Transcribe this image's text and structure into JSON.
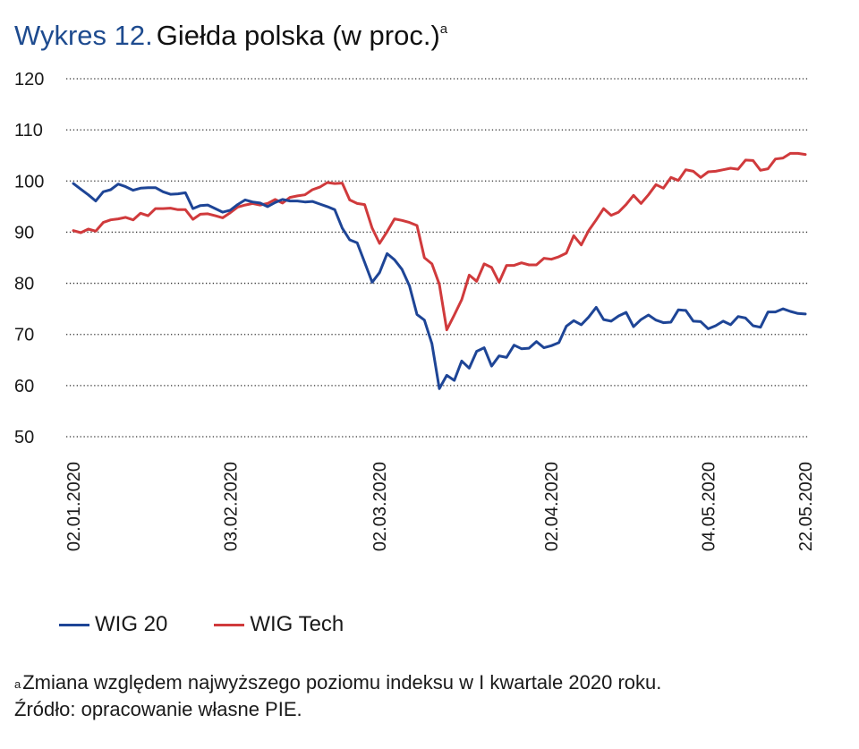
{
  "header": {
    "label": "Wykres 12.",
    "title": "Giełda polska (w proc.)",
    "title_sup": "a"
  },
  "footnote": {
    "marker": "a",
    "note": "Zmiana względem najwyższego poziomu indeksu w I kwartale 2020 roku.",
    "source": "Źródło: opracowanie własne PIE."
  },
  "chart_data": {
    "type": "line",
    "title": "Giełda polska (w proc.)",
    "xlabel": "",
    "ylabel": "",
    "ylim": [
      50,
      120
    ],
    "yticks": [
      120,
      110,
      100,
      90,
      80,
      70,
      60,
      50
    ],
    "grid": "horizontal-dotted",
    "legend_position": "bottom-left",
    "x_tick_labels": [
      "02.01.2020",
      "03.02.2020",
      "02.03.2020",
      "02.04.2020",
      "04.05.2020",
      "22.05.2020"
    ],
    "x_tick_index": [
      0,
      21,
      41,
      64,
      85,
      98
    ],
    "n_points": 99,
    "series": [
      {
        "name": "WIG 20",
        "color": "#1e4596",
        "values": [
          99.5,
          98.4,
          97.3,
          96.1,
          97.9,
          98.3,
          99.4,
          98.9,
          98.2,
          98.6,
          98.7,
          98.7,
          97.9,
          97.4,
          97.5,
          97.7,
          94.6,
          95.2,
          95.3,
          94.6,
          93.9,
          94.3,
          95.4,
          96.3,
          95.9,
          95.7,
          95.0,
          95.8,
          96.4,
          96.1,
          96.1,
          95.9,
          96.0,
          95.5,
          95.0,
          94.4,
          90.8,
          88.5,
          87.9,
          84.1,
          80.2,
          82.1,
          85.8,
          84.6,
          82.7,
          79.5,
          73.9,
          72.8,
          68.2,
          59.4,
          62.0,
          61.0,
          64.8,
          63.4,
          66.7,
          67.4,
          63.8,
          65.8,
          65.5,
          67.9,
          67.2,
          67.3,
          68.6,
          67.4,
          67.8,
          68.4,
          71.6,
          72.7,
          71.9,
          73.4,
          75.3,
          72.9,
          72.6,
          73.6,
          74.3,
          71.5,
          72.9,
          73.8,
          72.8,
          72.3,
          72.4,
          74.8,
          74.7,
          72.6,
          72.5,
          71.1,
          71.7,
          72.6,
          71.9,
          73.5,
          73.2,
          71.7,
          71.4,
          74.4,
          74.4,
          75.0,
          74.5,
          74.1,
          74.0
        ]
      },
      {
        "name": "WIG Tech",
        "color": "#d03a3c",
        "values": [
          90.3,
          89.9,
          90.6,
          90.2,
          91.9,
          92.4,
          92.6,
          92.9,
          92.4,
          93.7,
          93.2,
          94.6,
          94.6,
          94.7,
          94.4,
          94.4,
          92.5,
          93.5,
          93.6,
          93.2,
          92.8,
          93.8,
          94.9,
          95.3,
          95.6,
          95.3,
          95.6,
          96.4,
          95.7,
          96.8,
          97.1,
          97.3,
          98.3,
          98.8,
          99.7,
          99.5,
          99.6,
          96.3,
          95.6,
          95.4,
          90.8,
          87.8,
          90.1,
          92.6,
          92.3,
          91.9,
          91.3,
          85.0,
          83.8,
          79.8,
          70.9,
          73.8,
          76.8,
          81.6,
          80.4,
          83.8,
          83.1,
          80.2,
          83.5,
          83.5,
          84.0,
          83.6,
          83.6,
          84.9,
          84.7,
          85.2,
          85.9,
          89.3,
          87.5,
          90.3,
          92.4,
          94.6,
          93.3,
          93.9,
          95.4,
          97.2,
          95.6,
          97.3,
          99.3,
          98.6,
          100.7,
          100.1,
          102.2,
          101.9,
          100.7,
          101.8,
          101.9,
          102.2,
          102.5,
          102.3,
          104.1,
          104.0,
          102.1,
          102.4,
          104.3,
          104.5,
          105.4,
          105.4,
          105.2
        ]
      }
    ]
  },
  "legend": {
    "items": [
      {
        "label": "WIG 20",
        "color": "#1e4596"
      },
      {
        "label": "WIG Tech",
        "color": "#d03a3c"
      }
    ]
  }
}
